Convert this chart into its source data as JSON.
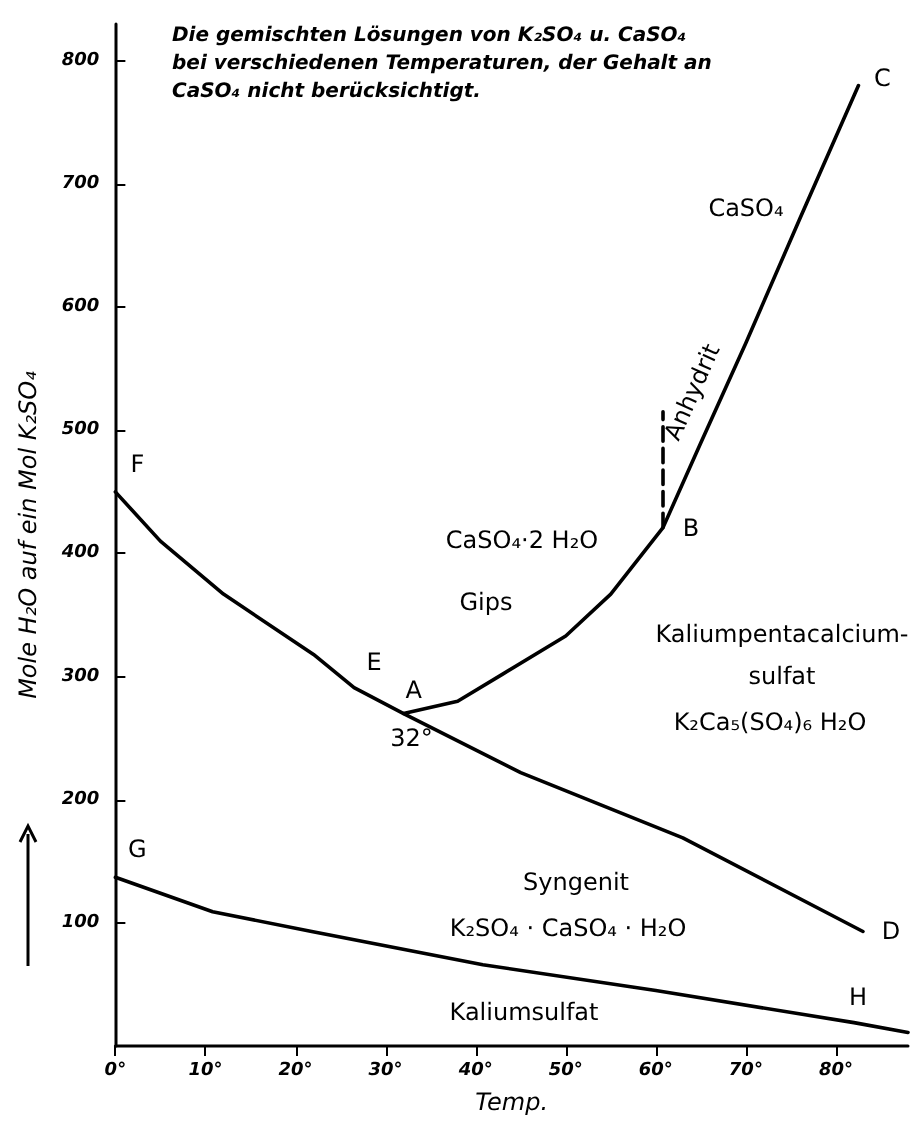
{
  "chart_data": {
    "type": "line",
    "title": "Die gemischten Lösungen von K₂SO₄ u. CaSO₄ bei verschiedenen Temperaturen, der Gehalt an CaSO₄ nicht berücksichtigt.",
    "xlabel": "Temp.",
    "ylabel": "Mole H₂O auf ein Mol K₂SO₄",
    "xlim": [
      0,
      88
    ],
    "ylim": [
      0,
      830
    ],
    "xticks": [
      {
        "value": 0,
        "label": "0°"
      },
      {
        "value": 10,
        "label": "10°"
      },
      {
        "value": 20,
        "label": "20°"
      },
      {
        "value": 30,
        "label": "30°"
      },
      {
        "value": 40,
        "label": "40°"
      },
      {
        "value": 50,
        "label": "50°"
      },
      {
        "value": 60,
        "label": "60°"
      },
      {
        "value": 70,
        "label": "70°"
      },
      {
        "value": 80,
        "label": "80°"
      }
    ],
    "yticks": [
      100,
      200,
      300,
      400,
      500,
      600,
      700,
      800
    ],
    "grid": false,
    "series": [
      {
        "color": "#000000",
        "x": [
          0,
          5,
          12,
          22,
          26.5,
          32,
          45,
          63,
          83
        ],
        "values": [
          450,
          410,
          367,
          318,
          291,
          270,
          222,
          169,
          93
        ]
      },
      {
        "color": "#000000",
        "x": [
          32,
          38,
          43,
          50,
          55,
          60.8,
          65,
          70,
          76,
          82.5
        ],
        "values": [
          270,
          280,
          302,
          333,
          367,
          421,
          490,
          571,
          672,
          780
        ]
      },
      {
        "color": "#000000",
        "x": [
          60.8,
          60.8
        ],
        "values": [
          421,
          515
        ],
        "line_style": "dashed"
      },
      {
        "color": "#000000",
        "x": [
          0,
          10.8,
          21.8,
          40.8,
          60,
          82,
          88
        ],
        "values": [
          137,
          109,
          93,
          66,
          45,
          19,
          11
        ]
      }
    ],
    "annotations": [
      {
        "text": "F",
        "x": 0,
        "y": 450
      },
      {
        "text": "E",
        "x": 26.5,
        "y": 291
      },
      {
        "text": "A",
        "x": 32,
        "y": 270
      },
      {
        "text": "32°",
        "x": 32,
        "y": 270
      },
      {
        "text": "B",
        "x": 60.8,
        "y": 421
      },
      {
        "text": "C",
        "x": 82.5,
        "y": 780
      },
      {
        "text": "D",
        "x": 83,
        "y": 93
      },
      {
        "text": "G",
        "x": 0,
        "y": 137
      },
      {
        "text": "H",
        "x": 82,
        "y": 19
      },
      "CaSO₄",
      "Anhydrit",
      "CaSO₄·2 H₂O",
      "Gips",
      "Kaliumpentacalcium-",
      "sulfat",
      "K₂Ca₅(SO₄)₆ H₂O",
      "Syngenit",
      "K₂SO₄ · CaSO₄ · H₂O",
      "Kaliumsulfat"
    ]
  }
}
